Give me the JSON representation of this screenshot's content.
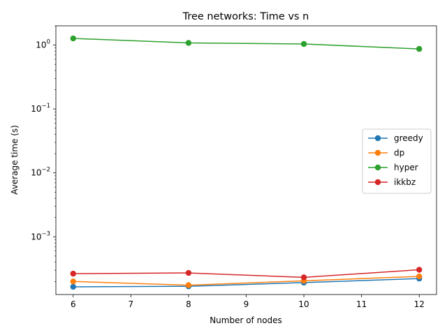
{
  "chart_data": {
    "type": "line",
    "title": "Tree networks: Time vs n",
    "xlabel": "Number of nodes",
    "ylabel": "Average time (s)",
    "yscale": "log",
    "xlim": [
      5.7,
      12.3
    ],
    "ylim": [
      0.000125,
      2.0
    ],
    "x_ticks": [
      6,
      7,
      8,
      9,
      10,
      11,
      12
    ],
    "y_ticks": [
      {
        "value": 0.001,
        "base": "10",
        "exp": "−3"
      },
      {
        "value": 0.01,
        "base": "10",
        "exp": "−2"
      },
      {
        "value": 0.1,
        "base": "10",
        "exp": "−1"
      },
      {
        "value": 1,
        "base": "10",
        "exp": "0"
      }
    ],
    "x": [
      6,
      8,
      10,
      12
    ],
    "series": [
      {
        "name": "greedy",
        "color": "#1f77b4",
        "values": [
          0.000165,
          0.000168,
          0.000192,
          0.000222
        ]
      },
      {
        "name": "dp",
        "color": "#ff7f0e",
        "values": [
          0.0002,
          0.000175,
          0.000205,
          0.00024
        ]
      },
      {
        "name": "hyper",
        "color": "#2ca02c",
        "values": [
          1.27,
          1.08,
          1.04,
          0.87
        ]
      },
      {
        "name": "ikkbz",
        "color": "#d62728",
        "values": [
          0.000265,
          0.000272,
          0.000232,
          0.000305
        ]
      }
    ],
    "legend_position": "center-right",
    "grid": false
  }
}
